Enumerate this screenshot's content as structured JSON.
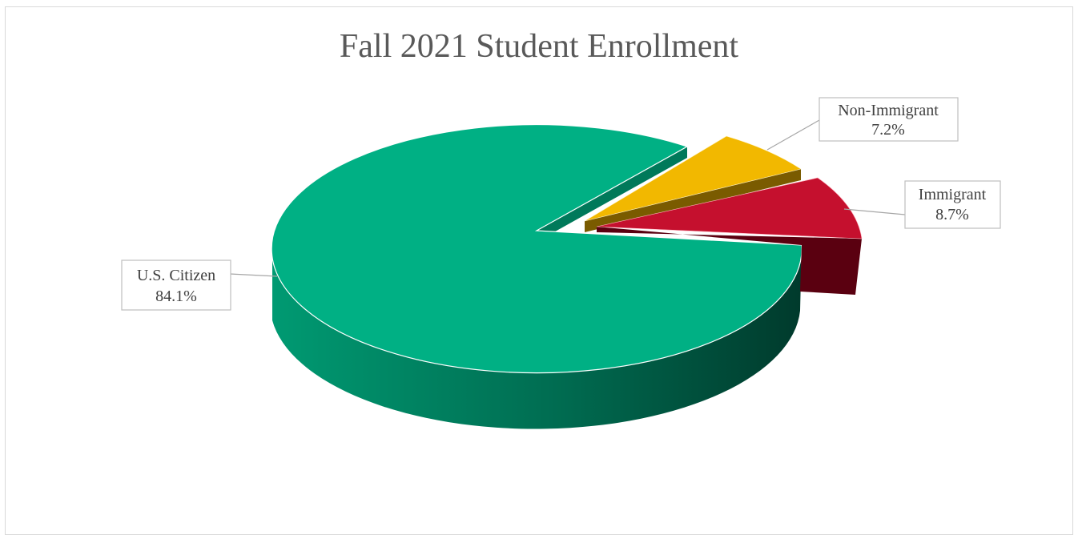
{
  "chart_data": {
    "type": "pie",
    "title": "Fall 2021 Student Enrollment",
    "slices": [
      {
        "label": "U.S. Citizen",
        "value": 84.1,
        "display": "84.1%",
        "color": "#00b084",
        "side_color": "#00795a"
      },
      {
        "label": "Non-Immigrant",
        "value": 7.2,
        "display": "7.2%",
        "color": "#f2b800",
        "side_color": "#7a5b00"
      },
      {
        "label": "Immigrant",
        "value": 8.7,
        "display": "8.7%",
        "color": "#c5102e",
        "side_color": "#5a0010"
      }
    ],
    "style": "3d-exploded",
    "legend": "none"
  }
}
